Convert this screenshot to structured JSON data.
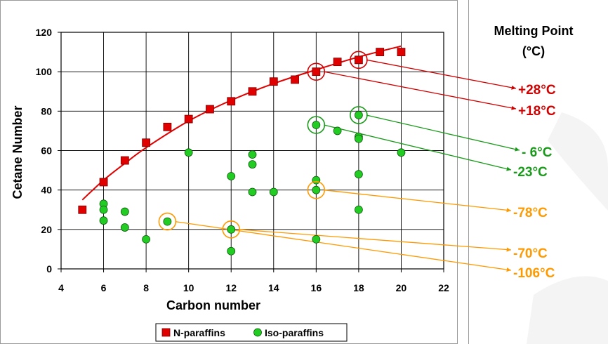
{
  "chart_data": {
    "type": "scatter",
    "xlabel": "Carbon number",
    "ylabel": "Cetane Number",
    "xlim": [
      4,
      22
    ],
    "ylim": [
      0,
      120
    ],
    "xticks": [
      4,
      6,
      8,
      10,
      12,
      14,
      16,
      18,
      20,
      22
    ],
    "yticks": [
      0,
      20,
      40,
      60,
      80,
      100,
      120
    ],
    "grid": true,
    "legend_position": "bottom",
    "series": [
      {
        "name": "N-paraffins",
        "marker": "square",
        "color": "#e00000",
        "points": [
          [
            5,
            30
          ],
          [
            6,
            44
          ],
          [
            7,
            55
          ],
          [
            8,
            64
          ],
          [
            9,
            72
          ],
          [
            10,
            76
          ],
          [
            11,
            81
          ],
          [
            12,
            85
          ],
          [
            13,
            90
          ],
          [
            14,
            95
          ],
          [
            15,
            96
          ],
          [
            16,
            100
          ],
          [
            17,
            105
          ],
          [
            18,
            106
          ],
          [
            19,
            110
          ],
          [
            20,
            110
          ]
        ]
      },
      {
        "name": "Iso-paraffins",
        "marker": "circle",
        "color": "#22cc22",
        "points": [
          [
            6,
            33
          ],
          [
            6,
            30
          ],
          [
            6,
            24.5
          ],
          [
            7,
            29
          ],
          [
            7,
            21
          ],
          [
            8,
            15
          ],
          [
            9,
            24
          ],
          [
            10,
            59
          ],
          [
            12,
            47
          ],
          [
            12,
            20
          ],
          [
            12,
            9
          ],
          [
            13,
            58
          ],
          [
            13,
            53
          ],
          [
            13,
            39
          ],
          [
            14,
            39
          ],
          [
            16,
            73
          ],
          [
            16,
            45
          ],
          [
            16,
            40
          ],
          [
            16,
            15
          ],
          [
            17,
            70
          ],
          [
            18,
            78
          ],
          [
            18,
            67
          ],
          [
            18,
            66
          ],
          [
            18,
            48
          ],
          [
            18,
            30
          ],
          [
            20,
            59
          ]
        ]
      }
    ],
    "trendline": {
      "series": "N-paraffins",
      "color": "#e00000",
      "points": [
        [
          5,
          35
        ],
        [
          6,
          45
        ],
        [
          7,
          53.5
        ],
        [
          8,
          61.5
        ],
        [
          10,
          75
        ],
        [
          12,
          85.5
        ],
        [
          14,
          94
        ],
        [
          16,
          101
        ],
        [
          18,
          107.5
        ],
        [
          20,
          113
        ]
      ]
    },
    "side_panel": {
      "title_line1": "Melting Point",
      "title_line2": "(°C)"
    },
    "annotations": [
      {
        "point": [
          18,
          106
        ],
        "label": "+28°C",
        "color": "#d00000"
      },
      {
        "point": [
          16,
          100
        ],
        "label": "+18°C",
        "color": "#d00000"
      },
      {
        "point": [
          18,
          78
        ],
        "label": "-  6°C",
        "color": "#1a9a1a"
      },
      {
        "point": [
          16,
          73
        ],
        "label": "-23°C",
        "color": "#1a9a1a"
      },
      {
        "point": [
          16,
          40
        ],
        "label": "-78°C",
        "color": "#ff9900"
      },
      {
        "point": [
          12,
          20
        ],
        "label": "-70°C",
        "color": "#ff9900"
      },
      {
        "point": [
          9,
          24
        ],
        "label": "-106°C",
        "color": "#ff9900"
      }
    ]
  }
}
